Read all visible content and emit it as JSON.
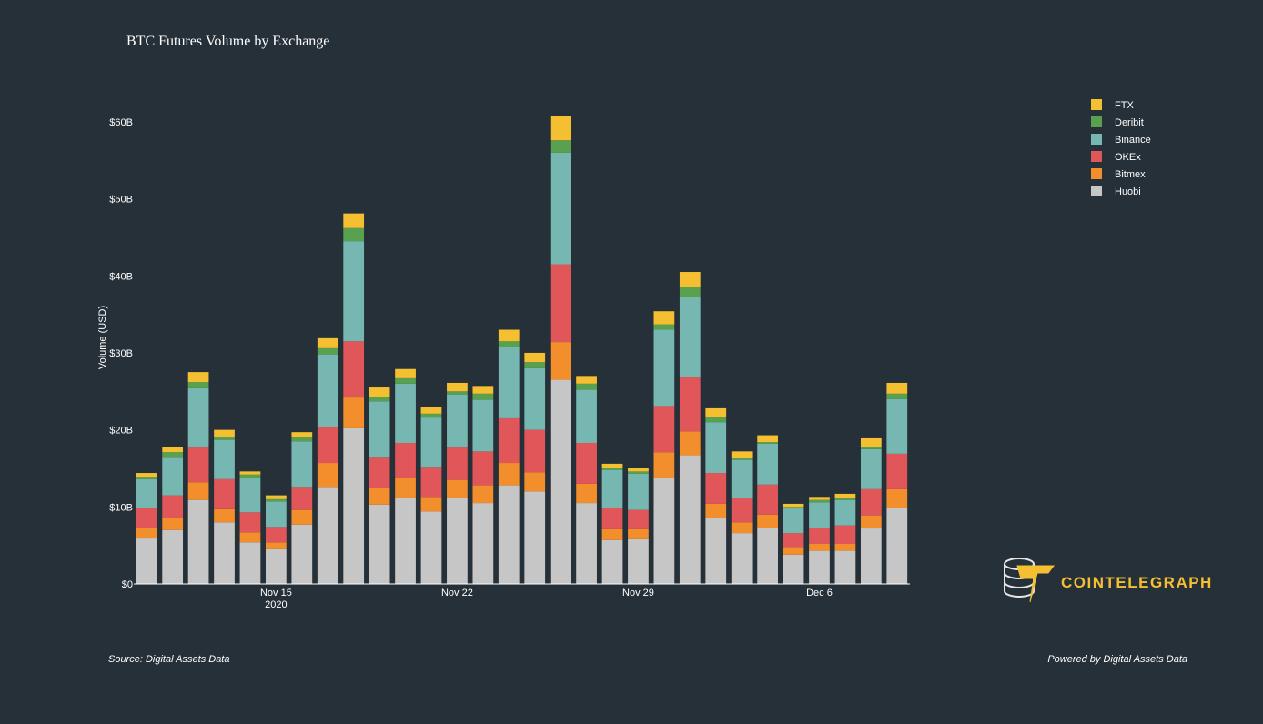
{
  "chart_data": {
    "type": "stacked-bar",
    "title": "BTC Futures Volume by Exchange",
    "ylabel": "Volume (USD)",
    "x": [
      "2020-11-10",
      "2020-11-11",
      "2020-11-12",
      "2020-11-13",
      "2020-11-14",
      "2020-11-15",
      "2020-11-16",
      "2020-11-17",
      "2020-11-18",
      "2020-11-19",
      "2020-11-20",
      "2020-11-21",
      "2020-11-22",
      "2020-11-23",
      "2020-11-24",
      "2020-11-25",
      "2020-11-26",
      "2020-11-27",
      "2020-11-28",
      "2020-11-29",
      "2020-11-30",
      "2020-12-01",
      "2020-12-02",
      "2020-12-03",
      "2020-12-04",
      "2020-12-05",
      "2020-12-06",
      "2020-12-07",
      "2020-12-08",
      "2020-12-09"
    ],
    "series": [
      {
        "name": "Huobi",
        "color": "#c6c6c6",
        "values": [
          5.9,
          7.0,
          10.9,
          8.0,
          5.4,
          4.5,
          7.7,
          12.6,
          20.2,
          10.3,
          11.2,
          9.4,
          11.2,
          10.5,
          12.8,
          12.0,
          26.5,
          10.5,
          5.7,
          5.8,
          13.7,
          16.7,
          8.6,
          6.6,
          7.3,
          3.8,
          4.3,
          4.3,
          7.2,
          9.9
        ]
      },
      {
        "name": "Bitmex",
        "color": "#f28e2b",
        "values": [
          1.4,
          1.6,
          2.3,
          1.7,
          1.3,
          0.9,
          1.9,
          3.1,
          4.0,
          2.2,
          2.5,
          1.9,
          2.3,
          2.3,
          2.9,
          2.5,
          4.9,
          2.5,
          1.4,
          1.3,
          3.4,
          3.1,
          1.8,
          1.4,
          1.7,
          1.0,
          0.9,
          0.9,
          1.7,
          2.4
        ]
      },
      {
        "name": "OKEx",
        "color": "#e15759",
        "values": [
          2.5,
          2.9,
          4.5,
          3.9,
          2.6,
          2.0,
          3.0,
          4.7,
          7.3,
          4.0,
          4.6,
          3.9,
          4.2,
          4.4,
          5.8,
          5.5,
          10.1,
          5.3,
          2.8,
          2.5,
          6.0,
          7.0,
          4.0,
          3.2,
          3.9,
          1.8,
          2.1,
          2.4,
          3.4,
          4.6
        ]
      },
      {
        "name": "Binance",
        "color": "#76b7b2",
        "values": [
          3.8,
          5.0,
          7.7,
          5.1,
          4.5,
          3.3,
          5.9,
          9.4,
          13.0,
          7.2,
          7.7,
          6.4,
          6.9,
          6.7,
          9.3,
          8.0,
          14.5,
          6.9,
          4.9,
          4.7,
          9.9,
          10.4,
          6.6,
          4.9,
          5.3,
          3.3,
          3.3,
          3.3,
          5.2,
          7.1
        ]
      },
      {
        "name": "Deribit",
        "color": "#59a14f",
        "values": [
          0.3,
          0.6,
          0.8,
          0.4,
          0.4,
          0.3,
          0.5,
          0.8,
          1.7,
          0.6,
          0.7,
          0.5,
          0.4,
          0.8,
          0.7,
          0.8,
          1.6,
          0.8,
          0.3,
          0.3,
          0.7,
          1.4,
          0.6,
          0.3,
          0.2,
          0.1,
          0.3,
          0.2,
          0.3,
          0.7
        ]
      },
      {
        "name": "FTX",
        "color": "#f5bf32",
        "values": [
          0.5,
          0.7,
          1.3,
          0.9,
          0.4,
          0.5,
          0.7,
          1.3,
          1.9,
          1.2,
          1.2,
          0.9,
          1.1,
          1.0,
          1.5,
          1.2,
          3.2,
          1.0,
          0.5,
          0.5,
          1.7,
          1.9,
          1.2,
          0.8,
          0.9,
          0.4,
          0.4,
          0.6,
          1.1,
          1.4
        ]
      }
    ],
    "xlim": [
      "2020-11-09T12:00:00Z",
      "2020-12-09T12:00:00Z"
    ],
    "xticks": [
      {
        "value": "2020-11-15",
        "label": "Nov 15\n2020"
      },
      {
        "value": "2020-11-22",
        "label": "Nov 22"
      },
      {
        "value": "2020-11-29",
        "label": "Nov 29"
      },
      {
        "value": "2020-12-06",
        "label": "Dec 6"
      }
    ],
    "ylim": [
      0,
      64
    ],
    "yticks": [
      {
        "value": 0,
        "label": "$0"
      },
      {
        "value": 10,
        "label": "$10B"
      },
      {
        "value": 20,
        "label": "$20B"
      },
      {
        "value": 30,
        "label": "$30B"
      },
      {
        "value": 40,
        "label": "$40B"
      },
      {
        "value": 50,
        "label": "$50B"
      },
      {
        "value": 60,
        "label": "$60B"
      }
    ],
    "grid": false,
    "legend": "top-right",
    "source": "Source: Digital Assets Data",
    "credit": "Powered by Digital Assets Data",
    "logo": "COINTELEGRAPH"
  }
}
